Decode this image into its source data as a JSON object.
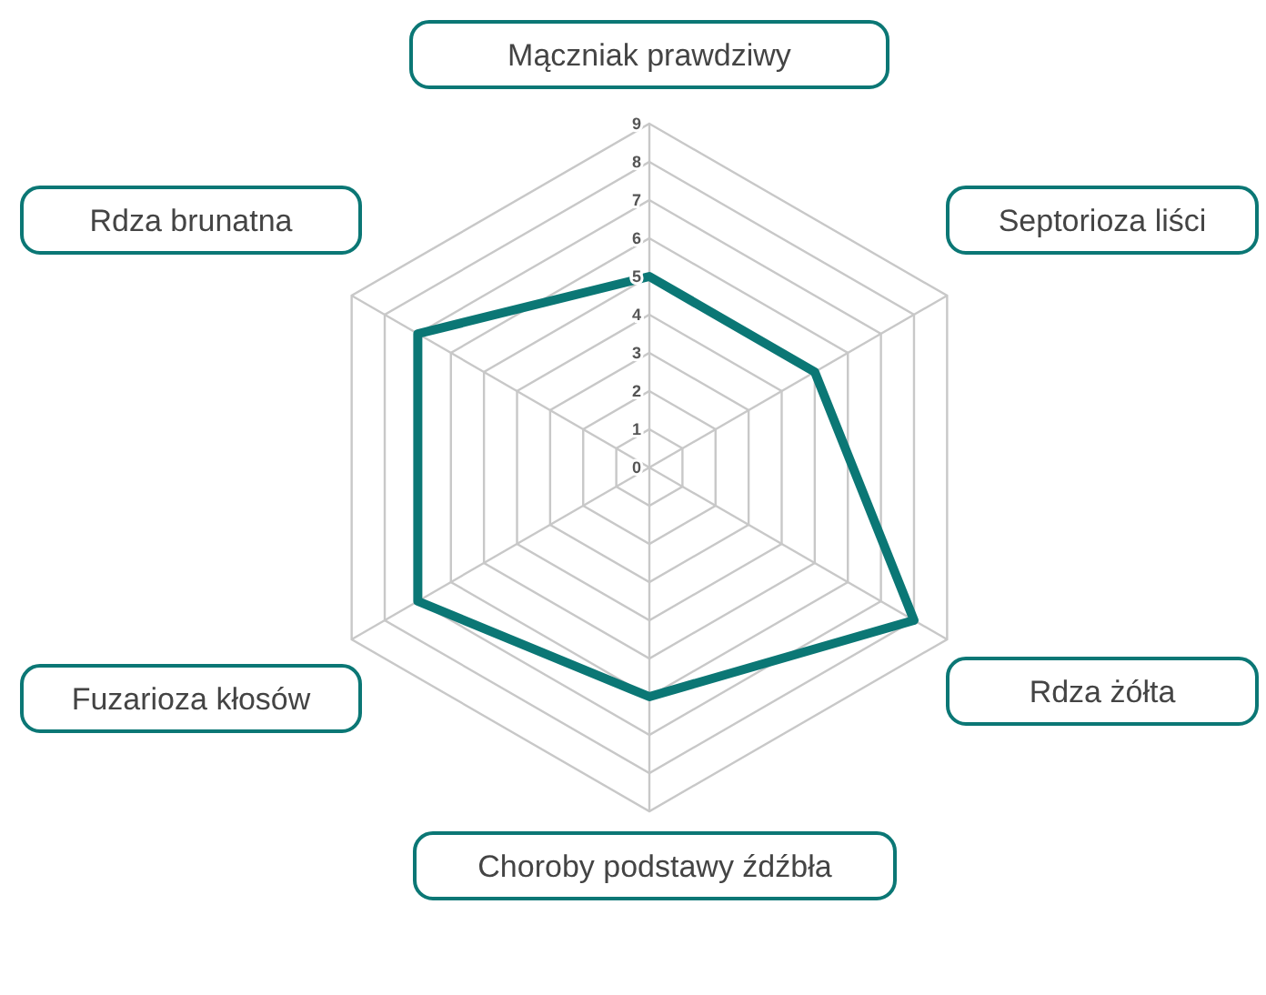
{
  "chart_data": {
    "type": "radar",
    "categories": [
      "Mączniak prawdziwy",
      "Septorioza liści",
      "Rdza żółta",
      "Choroby podstawy źdźbła",
      "Fuzarioza kłosów",
      "Rdza brunatna"
    ],
    "series": [
      {
        "color": "#0b7775",
        "values": [
          5,
          5,
          8,
          6,
          7,
          7
        ]
      }
    ],
    "ylim": [
      0,
      9
    ],
    "yticks": [
      0,
      1,
      2,
      3,
      4,
      5,
      6,
      7,
      8,
      9
    ],
    "grid": true,
    "legend": false
  }
}
